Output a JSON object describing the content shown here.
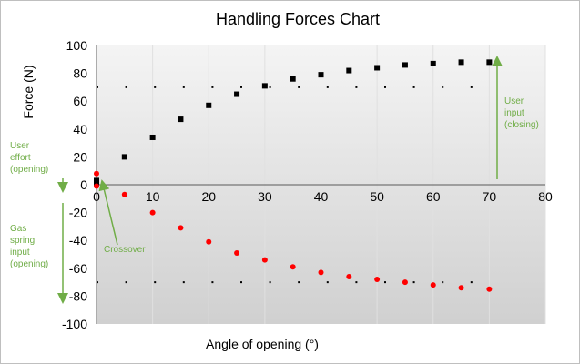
{
  "chart_data": {
    "type": "scatter",
    "title": "Handling Forces Chart",
    "xlabel": "Angle of opening (°)",
    "ylabel": "Force (N)",
    "xlim": [
      0,
      80
    ],
    "ylim": [
      -100,
      100
    ],
    "x_ticks": [
      "0",
      "10",
      "20",
      "30",
      "40",
      "50",
      "60",
      "70",
      "80"
    ],
    "y_ticks": [
      "100",
      "80",
      "60",
      "40",
      "20",
      "0",
      "-20",
      "-40",
      "-60",
      "-80",
      "-100"
    ],
    "grid": "vertical",
    "legend": "none",
    "colors": {
      "closing_series": "#000000",
      "opening_series": "#ff0000",
      "reference_lines": "#000000",
      "annotations": "#70ad47",
      "plot_background_top": "#f2f2f2",
      "plot_background_bottom": "#d0d0d0"
    },
    "series": [
      {
        "marker": "square",
        "color": "#000000",
        "x": [
          0,
          0,
          5,
          10,
          15,
          20,
          25,
          30,
          35,
          40,
          45,
          50,
          55,
          60,
          65,
          70
        ],
        "y": [
          1,
          3,
          20,
          34,
          47,
          57,
          65,
          71,
          76,
          79,
          82,
          84,
          86,
          87,
          88,
          88
        ]
      },
      {
        "marker": "circle",
        "color": "#ff0000",
        "x": [
          0,
          0,
          5,
          10,
          15,
          20,
          25,
          30,
          35,
          40,
          45,
          50,
          55,
          60,
          65,
          70
        ],
        "y": [
          8,
          -1,
          -7,
          -20,
          -31,
          -41,
          -49,
          -54,
          -59,
          -63,
          -66,
          -68,
          -70,
          -72,
          -74,
          -75
        ]
      }
    ],
    "reference_lines": [
      {
        "y": 70,
        "style": "dotted",
        "x_range": [
          0,
          70
        ]
      },
      {
        "y": -70,
        "style": "dotted",
        "x_range": [
          0,
          70
        ]
      }
    ],
    "annotations": [
      {
        "lines": [
          "User",
          "input",
          "(closing)"
        ],
        "arrow": "up"
      },
      {
        "lines": [
          "User",
          "effort",
          "(opening)"
        ],
        "arrow": "down"
      },
      {
        "lines": [
          "Gas",
          "spring",
          "input",
          "(opening)"
        ],
        "arrow": "down"
      },
      {
        "lines": [
          "Crossover"
        ],
        "arrow": "to-origin"
      }
    ]
  }
}
